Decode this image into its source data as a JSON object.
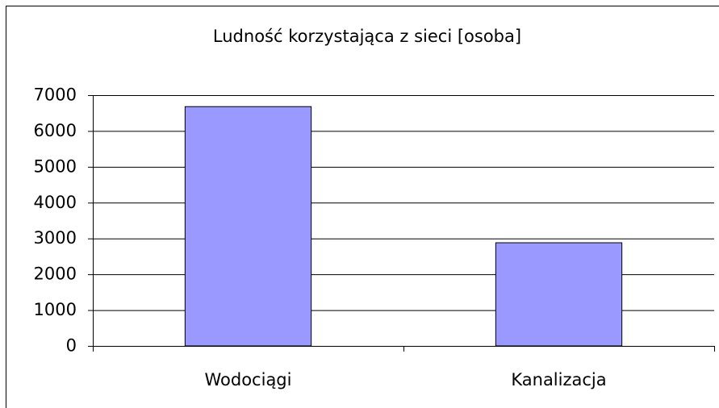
{
  "chart_data": {
    "type": "bar",
    "title": "Ludność korzystająca z sieci [osoba]",
    "categories": [
      "Wodociągi",
      "Kanalizacja"
    ],
    "values": [
      6680,
      2880
    ],
    "color": "#9999ff",
    "ylim": [
      0,
      7000
    ],
    "yticks": [
      0,
      1000,
      2000,
      3000,
      4000,
      5000,
      6000,
      7000
    ],
    "grid": true
  }
}
